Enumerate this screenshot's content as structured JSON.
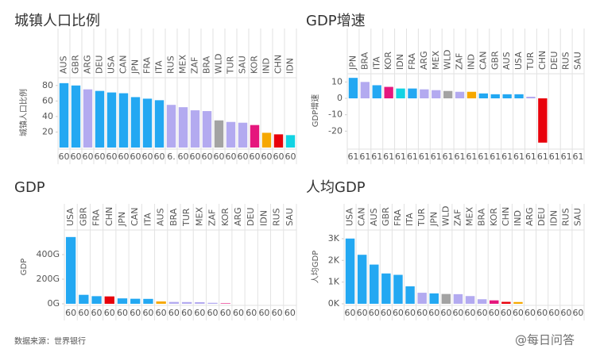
{
  "chart_data": [
    {
      "type": "bar",
      "title": "城镇人口比例",
      "ylabel": "城镇人口比例",
      "categories": [
        "AUS",
        "GBR",
        "ARG",
        "DEU",
        "USA",
        "CAN",
        "JPN",
        "FRA",
        "ITA",
        "RUS",
        "MEX",
        "ZAF",
        "BRA",
        "WLD",
        "TUR",
        "SAU",
        "KOR",
        "IND",
        "CHN",
        "IDN"
      ],
      "values": [
        83,
        80,
        75,
        73,
        71,
        70,
        65,
        63,
        61,
        55,
        52,
        48,
        47,
        35,
        33,
        32,
        29,
        19,
        17,
        16
      ],
      "colors": [
        "#23a8f2",
        "#23a8f2",
        "#b3aaf0",
        "#23a8f2",
        "#23a8f2",
        "#23a8f2",
        "#23a8f2",
        "#23a8f2",
        "#23a8f2",
        "#b3aaf0",
        "#b3aaf0",
        "#b3aaf0",
        "#b3aaf0",
        "#a3a3a3",
        "#b3aaf0",
        "#b3aaf0",
        "#e5177d",
        "#f6a800",
        "#e8000b",
        "#12d3e3"
      ],
      "period_labels": [
        "60",
        "60",
        "60",
        "60",
        "60",
        "60",
        "60",
        "60",
        "60",
        "6.",
        "60",
        "60",
        "60",
        "60",
        "60",
        "60",
        "60",
        "60",
        "60",
        "60"
      ],
      "ylim": [
        0,
        90
      ],
      "yticks": [
        20,
        40,
        60,
        80
      ]
    },
    {
      "type": "bar",
      "title": "GDP增速",
      "ylabel": "GDP增速",
      "categories": [
        "JPN",
        "BRA",
        "ITA",
        "KOR",
        "IDN",
        "FRA",
        "ARG",
        "MEX",
        "WLD",
        "ZAF",
        "IND",
        "CAN",
        "GBR",
        "AUS",
        "USA",
        "TUR",
        "CHN",
        "DEU",
        "RUS",
        "SAU"
      ],
      "values": [
        12.5,
        10,
        8,
        7,
        6,
        6,
        5.5,
        5,
        4.5,
        4,
        4,
        3,
        2.5,
        2.5,
        2.5,
        1,
        -27,
        null,
        null,
        null
      ],
      "colors": [
        "#23a8f2",
        "#b3aaf0",
        "#23a8f2",
        "#e5177d",
        "#12d3e3",
        "#23a8f2",
        "#b3aaf0",
        "#b3aaf0",
        "#a3a3a3",
        "#b3aaf0",
        "#f6a800",
        "#23a8f2",
        "#23a8f2",
        "#23a8f2",
        "#23a8f2",
        "#b3aaf0",
        "#e8000b",
        "#23a8f2",
        "#b3aaf0",
        "#b3aaf0"
      ],
      "period_labels": [
        "61",
        "61",
        "61",
        "61",
        "61",
        "61",
        "61",
        "61",
        "61",
        "61",
        "61",
        "61",
        "61",
        "61",
        "61",
        "61",
        "61",
        "61",
        "61",
        "61"
      ],
      "ylim": [
        -30,
        15
      ],
      "yticks": [
        -20,
        -10,
        0,
        10
      ]
    },
    {
      "type": "bar",
      "title": "GDP",
      "ylabel": "GDP",
      "categories": [
        "USA",
        "GBR",
        "FRA",
        "CHN",
        "JPN",
        "CAN",
        "ITA",
        "AUS",
        "BRA",
        "TUR",
        "MEX",
        "ZAF",
        "KOR",
        "ARG",
        "DEU",
        "IDN",
        "RUS",
        "SAU"
      ],
      "values": [
        543,
        73,
        62,
        60,
        44,
        41,
        40,
        19,
        15,
        14,
        13,
        8,
        4,
        null,
        null,
        null,
        null,
        null
      ],
      "colors": [
        "#23a8f2",
        "#23a8f2",
        "#23a8f2",
        "#e8000b",
        "#23a8f2",
        "#23a8f2",
        "#23a8f2",
        "#f6a800",
        "#b3aaf0",
        "#b3aaf0",
        "#b3aaf0",
        "#b3aaf0",
        "#e5177d",
        "#b3aaf0",
        "#23a8f2",
        "#12d3e3",
        "#b3aaf0",
        "#b3aaf0"
      ],
      "period_labels": [
        "60",
        "60",
        "60",
        "60",
        "60",
        "60",
        "60",
        "60",
        "60",
        "60",
        "60",
        "60",
        "60",
        "60",
        "60",
        "60",
        "60",
        "60"
      ],
      "ylim": [
        0,
        600
      ],
      "yticks": [
        {
          "value": 0,
          "label": "0G"
        },
        {
          "value": 200,
          "label": "200G"
        },
        {
          "value": 400,
          "label": "400G"
        }
      ]
    },
    {
      "type": "bar",
      "title": "人均GDP",
      "ylabel": "人均GDP",
      "categories": [
        "USA",
        "CAN",
        "AUS",
        "GBR",
        "FRA",
        "ITA",
        "TUR",
        "JPN",
        "WLD",
        "ZAF",
        "MEX",
        "BRA",
        "KOR",
        "CHN",
        "IND",
        "ARG",
        "DEU",
        "IDN",
        "RUS",
        "SAU"
      ],
      "values": [
        3007,
        2259,
        1807,
        1398,
        1334,
        804,
        509,
        479,
        452,
        443,
        356,
        210,
        158,
        90,
        82,
        null,
        null,
        null,
        null,
        null
      ],
      "colors": [
        "#23a8f2",
        "#23a8f2",
        "#23a8f2",
        "#23a8f2",
        "#23a8f2",
        "#23a8f2",
        "#b3aaf0",
        "#23a8f2",
        "#a3a3a3",
        "#b3aaf0",
        "#b3aaf0",
        "#b3aaf0",
        "#e5177d",
        "#e8000b",
        "#f6a800",
        "#b3aaf0",
        "#23a8f2",
        "#12d3e3",
        "#b3aaf0",
        "#b3aaf0"
      ],
      "period_labels": [
        "60",
        "60",
        "60",
        "60",
        "60",
        "60",
        "60",
        "60",
        "60",
        "60",
        "60",
        "60",
        "60",
        "60",
        "60",
        "60",
        "60",
        "60",
        "60",
        "60"
      ],
      "ylim": [
        0,
        3400
      ],
      "yticks": [
        {
          "value": 0,
          "label": "0K"
        },
        {
          "value": 1000,
          "label": "1K"
        },
        {
          "value": 2000,
          "label": "2K"
        },
        {
          "value": 3000,
          "label": "3K"
        }
      ]
    }
  ],
  "source": "数据来源：世界银行",
  "watermark": "@每日问答"
}
